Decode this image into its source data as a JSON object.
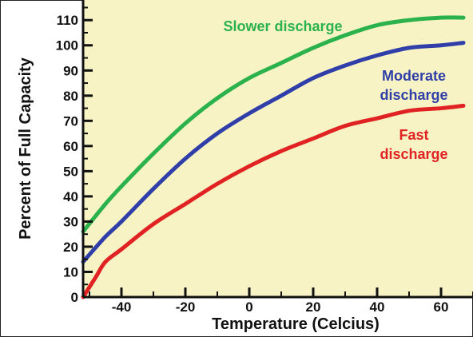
{
  "chart_data": {
    "type": "line",
    "xlabel": "Temperature (Celcius)",
    "ylabel": "Percent of Full Capacity",
    "xlim": [
      -52,
      70
    ],
    "ylim": [
      0,
      118
    ],
    "x_ticks": [
      -40,
      -20,
      0,
      20,
      40,
      60
    ],
    "x_tick_labels": [
      "-40",
      "-20",
      "0",
      "20",
      "40",
      "60"
    ],
    "y_ticks": [
      0,
      10,
      20,
      30,
      40,
      50,
      60,
      70,
      80,
      90,
      100,
      110
    ],
    "y_tick_labels": [
      "0",
      "10",
      "20",
      "30",
      "40",
      "50",
      "60",
      "70",
      "80",
      "90",
      "100",
      "110"
    ],
    "grid": false,
    "plot_background": "#f7f3c4",
    "series": [
      {
        "name": "Slower discharge",
        "color": "#2bb24c",
        "x": [
          -52,
          -45,
          -40,
          -30,
          -20,
          -10,
          0,
          10,
          20,
          30,
          40,
          50,
          60,
          67
        ],
        "y": [
          26,
          37,
          44,
          57,
          69,
          79,
          87,
          93,
          99,
          104,
          108,
          110,
          111,
          111
        ]
      },
      {
        "name": "Moderate discharge",
        "color": "#2f3ea8",
        "x": [
          -52,
          -45,
          -40,
          -30,
          -20,
          -10,
          0,
          10,
          20,
          30,
          40,
          50,
          60,
          67
        ],
        "y": [
          14,
          24,
          30,
          43,
          55,
          65,
          73,
          80,
          87,
          92,
          96,
          99,
          100,
          101
        ]
      },
      {
        "name": "Fast discharge",
        "color": "#e12222",
        "x": [
          -52,
          -48,
          -45,
          -40,
          -30,
          -20,
          -10,
          0,
          10,
          20,
          30,
          40,
          50,
          60,
          67
        ],
        "y": [
          0,
          8,
          14,
          19,
          29,
          37,
          45,
          52,
          58,
          63,
          68,
          71,
          74,
          75,
          76
        ]
      }
    ],
    "annotations": [
      {
        "lines": [
          "Slower discharge"
        ],
        "color": "#2bb24c"
      },
      {
        "lines": [
          "Moderate",
          "discharge"
        ],
        "color": "#2f3ea8"
      },
      {
        "lines": [
          "Fast",
          "discharge"
        ],
        "color": "#e12222"
      }
    ]
  }
}
